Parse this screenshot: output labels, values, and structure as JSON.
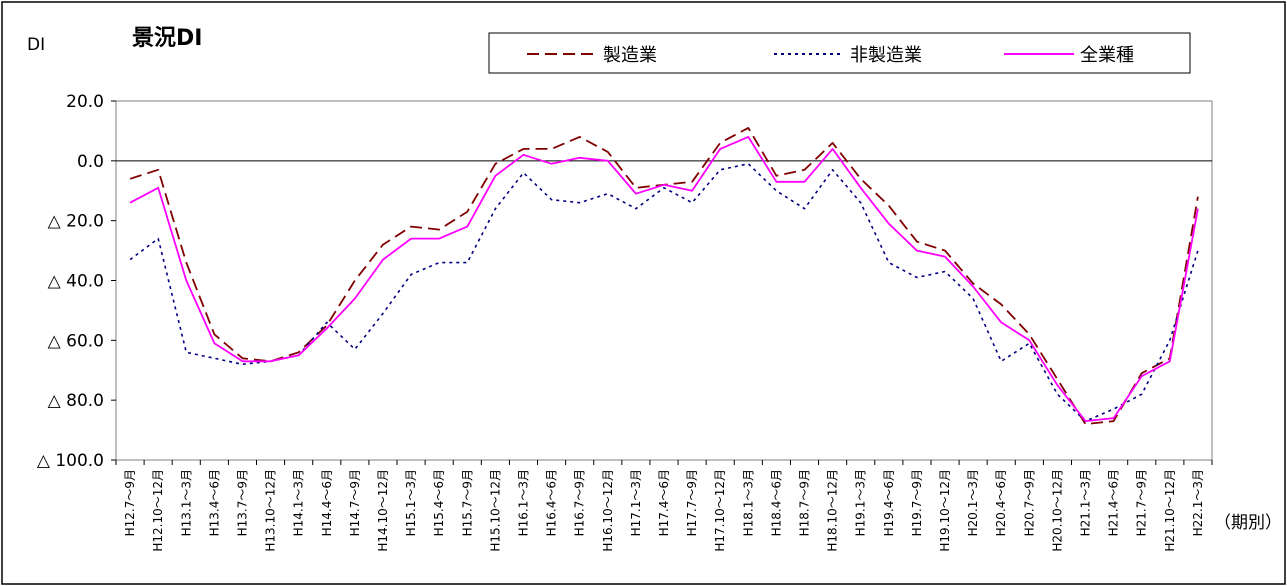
{
  "chart_data": {
    "type": "line",
    "title": "景況DI",
    "ylabel": "DI",
    "xlabel": "（期別）",
    "ylim": [
      -100,
      20
    ],
    "yticks": [
      {
        "value": 20,
        "label": "20.0"
      },
      {
        "value": 0,
        "label": "0.0"
      },
      {
        "value": -20,
        "label": "△ 20.0"
      },
      {
        "value": -40,
        "label": "△ 40.0"
      },
      {
        "value": -60,
        "label": "△ 60.0"
      },
      {
        "value": -80,
        "label": "△ 80.0"
      },
      {
        "value": -100,
        "label": "△ 100.0"
      }
    ],
    "legend_position": "top-right",
    "grid": false,
    "categories": [
      "H12.7～9月",
      "H12.10～12月",
      "H13.1～3月",
      "H13.4～6月",
      "H13.7～9月",
      "H13.10～12月",
      "H14.1～3月",
      "H14.4～6月",
      "H14.7～9月",
      "H14.10～12月",
      "H15.1～3月",
      "H15.4～6月",
      "H15.7～9月",
      "H15.10～12月",
      "H16.1～3月",
      "H16.4～6月",
      "H16.7～9月",
      "H16.10～12月",
      "H17.1～3月",
      "H17.4～6月",
      "H17.7～9月",
      "H17.10～12月",
      "H18.1～3月",
      "H18.4～6月",
      "H18.7～9月",
      "H18.10～12月",
      "H19.1～3月",
      "H19.4～6月",
      "H19.7～9月",
      "H19.10～12月",
      "H20.1～3月",
      "H20.4～6月",
      "H20.7～9月",
      "H20.10～12月",
      "H21.1～3月",
      "H21.4～6月",
      "H21.7～9月",
      "H21.10～12月",
      "H22.1～3月"
    ],
    "series": [
      {
        "name": "製造業",
        "color": "#800000",
        "dash": "dashed",
        "values": [
          -6,
          -3,
          -34,
          -58,
          -66,
          -67,
          -64,
          -55,
          -40,
          -28,
          -22,
          -23,
          -17,
          -1,
          4,
          4,
          8,
          3,
          -9,
          -8,
          -7,
          6,
          11,
          -5,
          -3,
          6,
          -6,
          -15,
          -27,
          -30,
          -41,
          -48,
          -58,
          -73,
          -88,
          -87,
          -71,
          -66,
          -12
        ]
      },
      {
        "name": "非製造業",
        "color": "#000080",
        "dash": "dotted",
        "values": [
          -33,
          -26,
          -64,
          -66,
          -68,
          -67,
          -65,
          -54,
          -63,
          -51,
          -38,
          -34,
          -34,
          -16,
          -4,
          -13,
          -14,
          -11,
          -16,
          -9,
          -14,
          -3,
          -1,
          -10,
          -16,
          -3,
          -14,
          -34,
          -39,
          -37,
          -46,
          -67,
          -61,
          -78,
          -87,
          -83,
          -78,
          -60,
          -30
        ]
      },
      {
        "name": "全業種",
        "color": "#FF00FF",
        "dash": "solid",
        "values": [
          -14,
          -9,
          -40,
          -61,
          -67,
          -67,
          -65,
          -56,
          -46,
          -33,
          -26,
          -26,
          -22,
          -5,
          2,
          -1,
          1,
          0,
          -11,
          -8,
          -10,
          4,
          8,
          -7,
          -7,
          4,
          -9,
          -21,
          -30,
          -32,
          -42,
          -54,
          -60,
          -75,
          -87,
          -86,
          -72,
          -67,
          -16
        ]
      }
    ]
  }
}
